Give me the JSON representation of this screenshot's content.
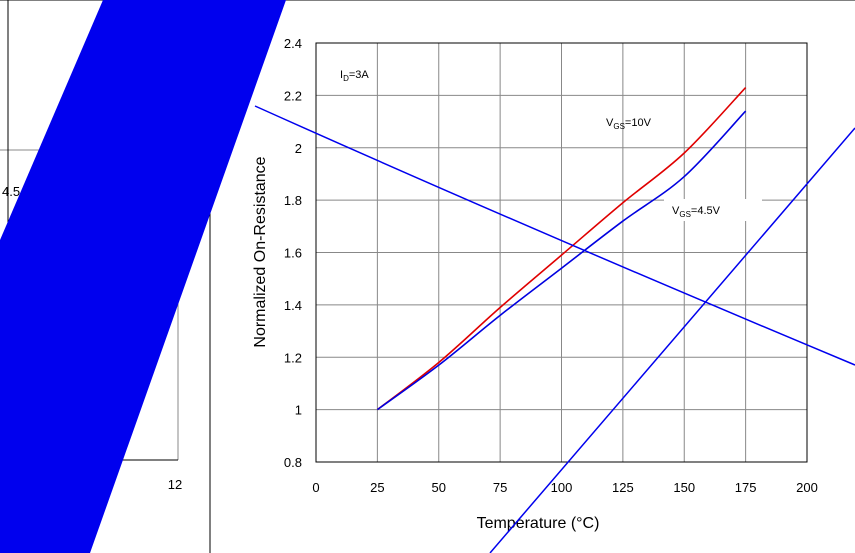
{
  "chart_data": {
    "type": "line",
    "xlabel": "Temperature (°C)",
    "ylabel": "Normalized On-Resistance",
    "xlim": [
      0,
      200
    ],
    "ylim": [
      0.8,
      2.4
    ],
    "x_ticks": [
      "0",
      "25",
      "50",
      "75",
      "100",
      "125",
      "150",
      "175",
      "200"
    ],
    "y_ticks": [
      "0.8",
      "1",
      "1.2",
      "1.4",
      "1.6",
      "1.8",
      "2",
      "2.2",
      "2.4"
    ],
    "grid": true,
    "condition_label": "ID=3A",
    "series": [
      {
        "name": "VGS=10V",
        "color": "#e00000",
        "x": [
          25,
          50,
          75,
          100,
          125,
          150,
          175
        ],
        "y": [
          1.0,
          1.18,
          1.39,
          1.59,
          1.79,
          1.98,
          2.23
        ]
      },
      {
        "name": "VGS=4.5V",
        "color": "#0000e0",
        "x": [
          25,
          50,
          75,
          100,
          125,
          150,
          175
        ],
        "y": [
          1.0,
          1.17,
          1.36,
          1.54,
          1.72,
          1.89,
          2.14
        ]
      }
    ],
    "background_left_panel": {
      "tick_label": "12",
      "partial_label": "4.5"
    }
  },
  "colors": {
    "overlay_blue": "#0000ee",
    "grid": "#888888",
    "frame": "#000000"
  }
}
